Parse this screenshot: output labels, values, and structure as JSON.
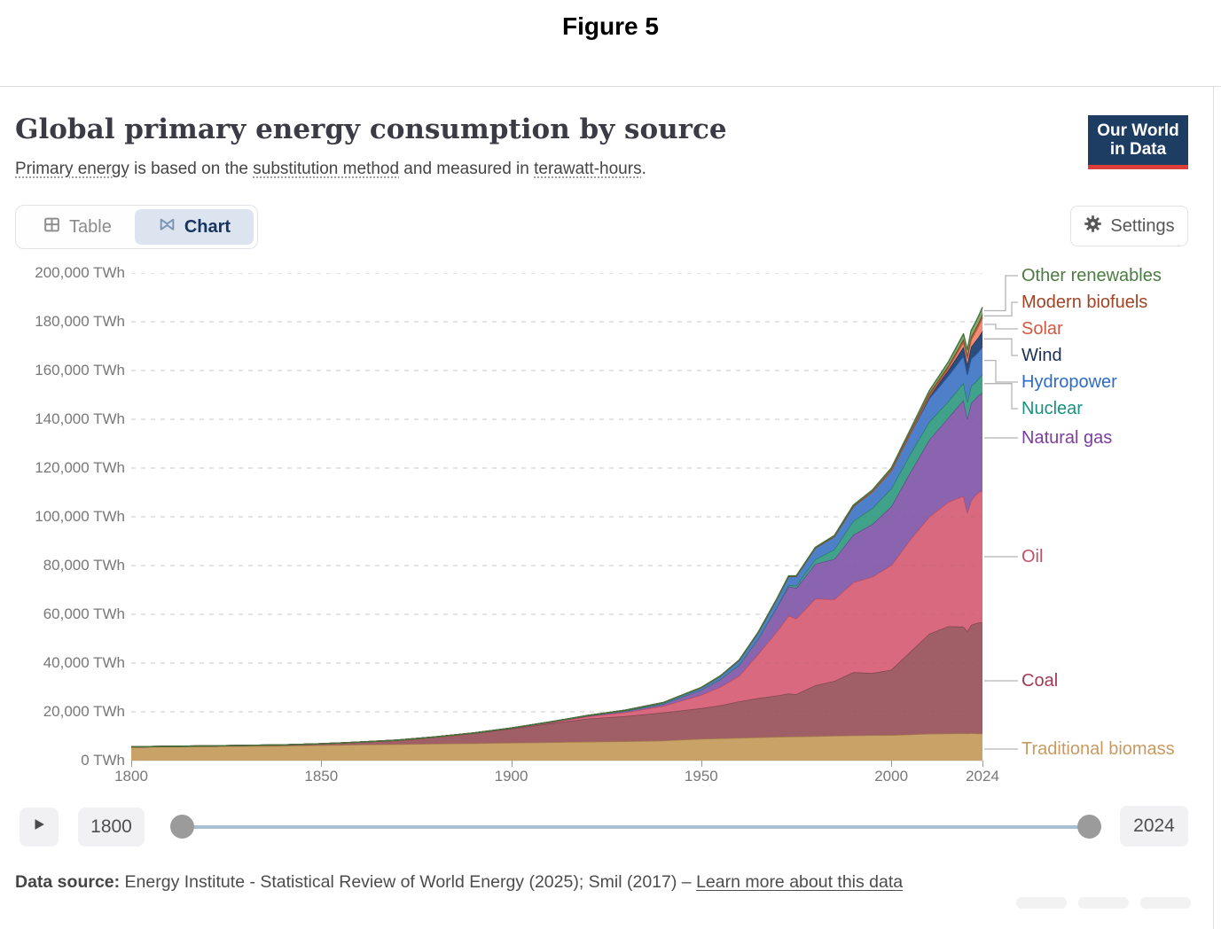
{
  "figure_label": "Figure 5",
  "header": {
    "title": "Global primary energy consumption by source",
    "subtitle_parts": [
      {
        "text": "Primary energy",
        "underline": true
      },
      {
        "text": " is based on the ",
        "underline": false
      },
      {
        "text": "substitution method",
        "underline": true
      },
      {
        "text": " and measured in ",
        "underline": false
      },
      {
        "text": "terawatt-hours",
        "underline": true
      },
      {
        "text": ".",
        "underline": false
      }
    ],
    "logo": {
      "line1": "Our World",
      "line2": "in Data",
      "bg_color": "#1d3d63",
      "accent_color": "#dc3e39"
    }
  },
  "toolbar": {
    "tabs": [
      {
        "label": "Table",
        "active": false
      },
      {
        "label": "Chart",
        "active": true
      }
    ],
    "settings_label": "Settings"
  },
  "chart_data": {
    "type": "area",
    "stacked": true,
    "title": "Global primary energy consumption by source",
    "unit": "TWh",
    "ylim": [
      0,
      200000
    ],
    "yticks": [
      0,
      20000,
      40000,
      60000,
      80000,
      100000,
      120000,
      140000,
      160000,
      180000,
      200000
    ],
    "xticks": [
      1800,
      1850,
      1900,
      1950,
      2000,
      2024
    ],
    "xlim": [
      1800,
      2024
    ],
    "grid": "dashed-horizontal",
    "legend_position": "right",
    "x": [
      1800,
      1820,
      1840,
      1850,
      1860,
      1870,
      1880,
      1890,
      1900,
      1910,
      1920,
      1930,
      1940,
      1950,
      1955,
      1960,
      1965,
      1970,
      1973,
      1975,
      1980,
      1985,
      1990,
      1995,
      2000,
      2005,
      2010,
      2015,
      2019,
      2020,
      2021,
      2022,
      2023,
      2024
    ],
    "series": [
      {
        "name": "Traditional biomass",
        "fill": "#c9a268",
        "edge": "#a67f4b",
        "label_color": "#c79b62",
        "label_y": 537,
        "elbow": 0,
        "values": [
          5556,
          5800,
          6050,
          6300,
          6500,
          6700,
          6900,
          7100,
          7327,
          7500,
          7700,
          7900,
          8200,
          8900,
          9100,
          9300,
          9500,
          9700,
          9800,
          9850,
          10000,
          10150,
          10300,
          10400,
          10450,
          10700,
          11000,
          11100,
          11150,
          11100,
          11150,
          11150,
          11100,
          11100
        ]
      },
      {
        "name": "Coal",
        "fill": "#a05e66",
        "edge": "#7c464d",
        "label_color": "#a23a55",
        "label_y": 460,
        "elbow": 0,
        "values": [
          97,
          200,
          400,
          569,
          1060,
          1640,
          2770,
          4070,
          5728,
          7660,
          9500,
          10300,
          11500,
          12603,
          13600,
          15000,
          16140,
          17000,
          17700,
          17400,
          20858,
          22500,
          25900,
          25500,
          26770,
          34000,
          41000,
          44000,
          43800,
          42000,
          44500,
          45000,
          45500,
          45600
        ]
      },
      {
        "name": "Oil",
        "fill": "#d9697f",
        "edge": "#b8495f",
        "label_color": "#c25166",
        "label_y": 320,
        "elbow": 0,
        "values": [
          0,
          0,
          0,
          0,
          1,
          9,
          30,
          90,
          181,
          400,
          889,
          1600,
          2700,
          5444,
          7500,
          10500,
          18054,
          26500,
          32000,
          31000,
          35577,
          33500,
          36900,
          39500,
          42882,
          46000,
          48000,
          51000,
          53600,
          48700,
          51000,
          52500,
          53500,
          54000
        ]
      },
      {
        "name": "Natural gas",
        "fill": "#8b64af",
        "edge": "#68458d",
        "label_color": "#7a3e9d",
        "label_y": 186,
        "elbow": 9,
        "values": [
          0,
          0,
          0,
          0,
          0,
          0,
          10,
          30,
          64,
          140,
          230,
          550,
          880,
          2092,
          3200,
          4500,
          6304,
          10000,
          12000,
          12500,
          14243,
          16500,
          19500,
          21500,
          24100,
          27500,
          31600,
          34500,
          39300,
          38500,
          40000,
          39500,
          39800,
          40100
        ]
      },
      {
        "name": "Nuclear",
        "fill": "#41a28a",
        "edge": "#267a63",
        "label_color": "#199180",
        "label_y": 153,
        "elbow": 33,
        "values": [
          0,
          0,
          0,
          0,
          0,
          0,
          0,
          0,
          0,
          0,
          0,
          0,
          0,
          0,
          0,
          10,
          72,
          224,
          550,
          1000,
          1855,
          4000,
          5676,
          6600,
          7322,
          7600,
          7380,
          6700,
          7100,
          6800,
          7000,
          6800,
          6900,
          7700
        ]
      },
      {
        "name": "Hydropower",
        "fill": "#4e80ca",
        "edge": "#2f5ea8",
        "label_color": "#2e6bc8",
        "label_y": 123,
        "elbow": 15,
        "values": [
          0,
          0,
          0,
          0,
          0,
          0,
          0,
          20,
          49,
          90,
          140,
          290,
          500,
          926,
          1300,
          1900,
          2522,
          3200,
          3600,
          3900,
          4708,
          5300,
          6000,
          6700,
          7300,
          8200,
          9500,
          10500,
          11000,
          11200,
          11100,
          11200,
          11000,
          11300
        ]
      },
      {
        "name": "Wind",
        "fill": "#2b4d7e",
        "edge": "#182f52",
        "label_color": "#1b2e55",
        "label_y": 93,
        "elbow": 33,
        "values": [
          0,
          0,
          0,
          0,
          0,
          0,
          0,
          0,
          0,
          0,
          0,
          0,
          0,
          0,
          0,
          0,
          0,
          0,
          0,
          0,
          0,
          0,
          10,
          30,
          83,
          280,
          962,
          2300,
          3800,
          4300,
          4900,
          5600,
          6000,
          6400
        ]
      },
      {
        "name": "Solar",
        "fill": "#f08d77",
        "edge": "#cf5b42",
        "label_color": "#d25741",
        "label_y": 63,
        "elbow": 15,
        "values": [
          0,
          0,
          0,
          0,
          0,
          0,
          0,
          0,
          0,
          0,
          0,
          0,
          0,
          0,
          0,
          0,
          0,
          0,
          0,
          0,
          0,
          0,
          0,
          0,
          3,
          11,
          86,
          690,
          1800,
          2300,
          2900,
          3600,
          4500,
          5500
        ]
      },
      {
        "name": "Modern biofuels",
        "fill": "#a85c38",
        "edge": "#7d3a1b",
        "label_color": "#a04426",
        "label_y": 33,
        "elbow": 33,
        "values": [
          0,
          0,
          0,
          0,
          0,
          0,
          0,
          0,
          0,
          0,
          0,
          0,
          0,
          0,
          0,
          0,
          0,
          0,
          0,
          0,
          30,
          60,
          120,
          250,
          500,
          700,
          1100,
          1100,
          1300,
          1200,
          1300,
          1350,
          1400,
          1400
        ]
      },
      {
        "name": "Other renewables",
        "fill": "#81a974",
        "edge": "#44743a",
        "label_color": "#4b7c42",
        "label_y": 3,
        "elbow": 26,
        "values": [
          0,
          0,
          0,
          0,
          0,
          0,
          0,
          0,
          0,
          0,
          0,
          0,
          0,
          20,
          30,
          50,
          80,
          120,
          150,
          170,
          200,
          300,
          400,
          500,
          600,
          800,
          1100,
          1600,
          2200,
          2400,
          2500,
          2600,
          2750,
          2900
        ]
      }
    ]
  },
  "timeline": {
    "start_label": "1800",
    "end_label": "2024"
  },
  "footer": {
    "source_label": "Data source:",
    "source_text": "Energy Institute - Statistical Review of World Energy (2025); Smil (2017)",
    "separator": "–",
    "link_text": "Learn more about this data"
  }
}
